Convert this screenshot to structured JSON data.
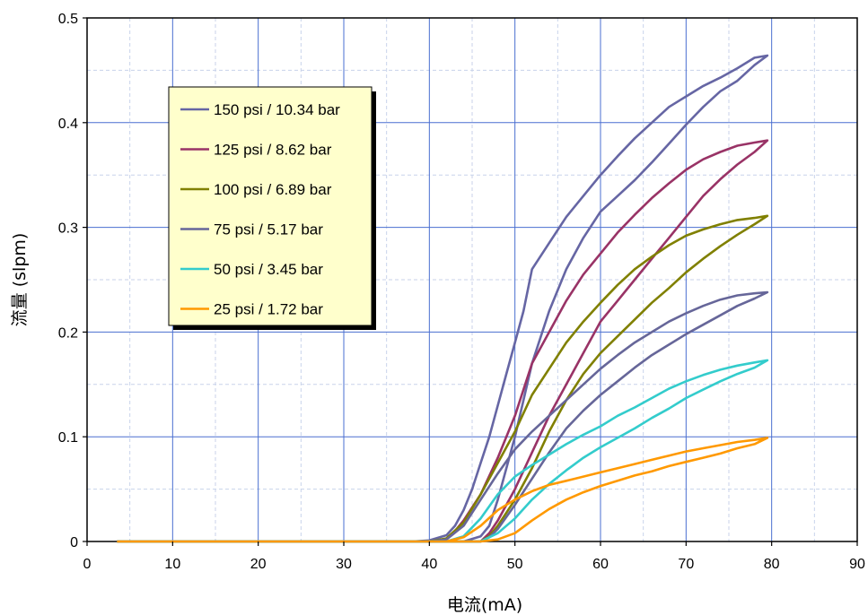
{
  "chart_data": {
    "type": "line",
    "title": "",
    "xlabel": "电流(mA)",
    "ylabel": "流量 (slpm)",
    "xlim": [
      0,
      90
    ],
    "ylim": [
      0,
      0.5
    ],
    "x_ticks": [
      "0",
      "10",
      "20",
      "30",
      "40",
      "50",
      "60",
      "70",
      "80",
      "90"
    ],
    "y_ticks": [
      "0",
      "0.1",
      "0.2",
      "0.3",
      "0.4",
      "0.5"
    ],
    "grid": true,
    "legend_position": "top-left",
    "series": [
      {
        "name": "150 psi / 10.34 bar",
        "color": "#6666a4",
        "up": [
          [
            3.5,
            0
          ],
          [
            10,
            0
          ],
          [
            20,
            0
          ],
          [
            30,
            0
          ],
          [
            38,
            0
          ],
          [
            40,
            0.001
          ],
          [
            42,
            0.006
          ],
          [
            43,
            0.015
          ],
          [
            44,
            0.03
          ],
          [
            45,
            0.05
          ],
          [
            46,
            0.075
          ],
          [
            47,
            0.1
          ],
          [
            48,
            0.13
          ],
          [
            49,
            0.16
          ],
          [
            50,
            0.19
          ],
          [
            51,
            0.22
          ],
          [
            52,
            0.26
          ],
          [
            54,
            0.285
          ],
          [
            56,
            0.31
          ],
          [
            58,
            0.33
          ],
          [
            60,
            0.35
          ],
          [
            62,
            0.368
          ],
          [
            64,
            0.385
          ],
          [
            66,
            0.4
          ],
          [
            68,
            0.415
          ],
          [
            70,
            0.425
          ],
          [
            72,
            0.435
          ],
          [
            74,
            0.443
          ],
          [
            76,
            0.452
          ],
          [
            78,
            0.462
          ],
          [
            79.5,
            0.464
          ]
        ],
        "down": [
          [
            79.5,
            0.464
          ],
          [
            78,
            0.455
          ],
          [
            76,
            0.44
          ],
          [
            74,
            0.43
          ],
          [
            72,
            0.415
          ],
          [
            70,
            0.398
          ],
          [
            68,
            0.38
          ],
          [
            66,
            0.362
          ],
          [
            64,
            0.345
          ],
          [
            62,
            0.33
          ],
          [
            60,
            0.315
          ],
          [
            58,
            0.29
          ],
          [
            56,
            0.26
          ],
          [
            54,
            0.22
          ],
          [
            52,
            0.17
          ],
          [
            50,
            0.1
          ],
          [
            48,
            0.04
          ],
          [
            47,
            0.015
          ],
          [
            46,
            0.005
          ],
          [
            44,
            0
          ],
          [
            40,
            0
          ],
          [
            3.5,
            0
          ]
        ]
      },
      {
        "name": "125 psi / 8.62 bar",
        "color": "#993366",
        "up": [
          [
            3.5,
            0
          ],
          [
            30,
            0
          ],
          [
            40,
            0
          ],
          [
            42,
            0.002
          ],
          [
            43,
            0.01
          ],
          [
            44,
            0.02
          ],
          [
            46,
            0.045
          ],
          [
            48,
            0.08
          ],
          [
            50,
            0.12
          ],
          [
            52,
            0.17
          ],
          [
            54,
            0.2
          ],
          [
            56,
            0.23
          ],
          [
            58,
            0.255
          ],
          [
            60,
            0.275
          ],
          [
            62,
            0.295
          ],
          [
            64,
            0.312
          ],
          [
            66,
            0.328
          ],
          [
            68,
            0.342
          ],
          [
            70,
            0.355
          ],
          [
            72,
            0.365
          ],
          [
            74,
            0.372
          ],
          [
            76,
            0.378
          ],
          [
            78,
            0.381
          ],
          [
            79.5,
            0.383
          ]
        ],
        "down": [
          [
            79.5,
            0.383
          ],
          [
            78,
            0.372
          ],
          [
            76,
            0.36
          ],
          [
            74,
            0.346
          ],
          [
            72,
            0.33
          ],
          [
            70,
            0.31
          ],
          [
            68,
            0.29
          ],
          [
            66,
            0.27
          ],
          [
            64,
            0.25
          ],
          [
            62,
            0.23
          ],
          [
            60,
            0.21
          ],
          [
            58,
            0.18
          ],
          [
            56,
            0.15
          ],
          [
            54,
            0.12
          ],
          [
            52,
            0.085
          ],
          [
            50,
            0.05
          ],
          [
            48,
            0.02
          ],
          [
            47,
            0.008
          ],
          [
            46,
            0
          ],
          [
            40,
            0
          ],
          [
            3.5,
            0
          ]
        ]
      },
      {
        "name": "100 psi / 6.89 bar",
        "color": "#808000",
        "up": [
          [
            3.5,
            0
          ],
          [
            30,
            0
          ],
          [
            40,
            0
          ],
          [
            42,
            0.003
          ],
          [
            44,
            0.018
          ],
          [
            46,
            0.045
          ],
          [
            48,
            0.075
          ],
          [
            50,
            0.105
          ],
          [
            52,
            0.14
          ],
          [
            54,
            0.165
          ],
          [
            56,
            0.19
          ],
          [
            58,
            0.21
          ],
          [
            60,
            0.228
          ],
          [
            62,
            0.245
          ],
          [
            64,
            0.26
          ],
          [
            66,
            0.272
          ],
          [
            68,
            0.283
          ],
          [
            70,
            0.292
          ],
          [
            72,
            0.298
          ],
          [
            74,
            0.303
          ],
          [
            76,
            0.307
          ],
          [
            78,
            0.309
          ],
          [
            79.5,
            0.311
          ]
        ],
        "down": [
          [
            79.5,
            0.311
          ],
          [
            78,
            0.303
          ],
          [
            76,
            0.293
          ],
          [
            74,
            0.282
          ],
          [
            72,
            0.27
          ],
          [
            70,
            0.257
          ],
          [
            68,
            0.242
          ],
          [
            66,
            0.228
          ],
          [
            64,
            0.212
          ],
          [
            62,
            0.196
          ],
          [
            60,
            0.18
          ],
          [
            58,
            0.16
          ],
          [
            56,
            0.135
          ],
          [
            54,
            0.105
          ],
          [
            52,
            0.07
          ],
          [
            50,
            0.04
          ],
          [
            48,
            0.015
          ],
          [
            47,
            0.005
          ],
          [
            46,
            0
          ],
          [
            40,
            0
          ],
          [
            3.5,
            0
          ]
        ]
      },
      {
        "name": "75 psi / 5.17 bar",
        "color": "#666699",
        "up": [
          [
            3.5,
            0
          ],
          [
            30,
            0
          ],
          [
            40,
            0
          ],
          [
            42,
            0.002
          ],
          [
            44,
            0.015
          ],
          [
            46,
            0.04
          ],
          [
            48,
            0.065
          ],
          [
            50,
            0.088
          ],
          [
            52,
            0.105
          ],
          [
            54,
            0.12
          ],
          [
            56,
            0.135
          ],
          [
            58,
            0.15
          ],
          [
            60,
            0.165
          ],
          [
            62,
            0.178
          ],
          [
            64,
            0.19
          ],
          [
            66,
            0.2
          ],
          [
            68,
            0.21
          ],
          [
            70,
            0.218
          ],
          [
            72,
            0.225
          ],
          [
            74,
            0.231
          ],
          [
            76,
            0.235
          ],
          [
            78,
            0.237
          ],
          [
            79.5,
            0.238
          ]
        ],
        "down": [
          [
            79.5,
            0.238
          ],
          [
            78,
            0.232
          ],
          [
            76,
            0.225
          ],
          [
            74,
            0.216
          ],
          [
            72,
            0.207
          ],
          [
            70,
            0.198
          ],
          [
            68,
            0.188
          ],
          [
            66,
            0.178
          ],
          [
            64,
            0.166
          ],
          [
            62,
            0.153
          ],
          [
            60,
            0.14
          ],
          [
            58,
            0.125
          ],
          [
            56,
            0.108
          ],
          [
            54,
            0.085
          ],
          [
            52,
            0.06
          ],
          [
            50,
            0.035
          ],
          [
            48,
            0.012
          ],
          [
            47,
            0.004
          ],
          [
            46,
            0
          ],
          [
            40,
            0
          ],
          [
            3.5,
            0
          ]
        ]
      },
      {
        "name": "50 psi / 3.45 bar",
        "color": "#33cccc",
        "up": [
          [
            3.5,
            0
          ],
          [
            30,
            0
          ],
          [
            42,
            0
          ],
          [
            44,
            0.005
          ],
          [
            46,
            0.022
          ],
          [
            48,
            0.045
          ],
          [
            50,
            0.062
          ],
          [
            52,
            0.073
          ],
          [
            54,
            0.083
          ],
          [
            56,
            0.093
          ],
          [
            58,
            0.102
          ],
          [
            60,
            0.11
          ],
          [
            62,
            0.12
          ],
          [
            64,
            0.128
          ],
          [
            66,
            0.137
          ],
          [
            68,
            0.146
          ],
          [
            70,
            0.153
          ],
          [
            72,
            0.159
          ],
          [
            74,
            0.164
          ],
          [
            76,
            0.168
          ],
          [
            78,
            0.171
          ],
          [
            79.5,
            0.173
          ]
        ],
        "down": [
          [
            79.5,
            0.173
          ],
          [
            78,
            0.166
          ],
          [
            76,
            0.16
          ],
          [
            74,
            0.153
          ],
          [
            72,
            0.145
          ],
          [
            70,
            0.137
          ],
          [
            68,
            0.127
          ],
          [
            66,
            0.118
          ],
          [
            64,
            0.108
          ],
          [
            62,
            0.099
          ],
          [
            60,
            0.09
          ],
          [
            58,
            0.08
          ],
          [
            56,
            0.068
          ],
          [
            54,
            0.055
          ],
          [
            52,
            0.04
          ],
          [
            50,
            0.022
          ],
          [
            48,
            0.008
          ],
          [
            46,
            0
          ],
          [
            40,
            0
          ],
          [
            3.5,
            0
          ]
        ]
      },
      {
        "name": "25 psi / 1.72 bar",
        "color": "#ff9900",
        "up": [
          [
            3.5,
            0
          ],
          [
            30,
            0
          ],
          [
            42,
            0
          ],
          [
            44,
            0.004
          ],
          [
            46,
            0.015
          ],
          [
            48,
            0.03
          ],
          [
            50,
            0.04
          ],
          [
            52,
            0.048
          ],
          [
            54,
            0.054
          ],
          [
            56,
            0.058
          ],
          [
            58,
            0.062
          ],
          [
            60,
            0.066
          ],
          [
            62,
            0.07
          ],
          [
            64,
            0.074
          ],
          [
            66,
            0.078
          ],
          [
            68,
            0.082
          ],
          [
            70,
            0.086
          ],
          [
            72,
            0.089
          ],
          [
            74,
            0.092
          ],
          [
            76,
            0.095
          ],
          [
            78,
            0.097
          ],
          [
            79.5,
            0.099
          ]
        ],
        "down": [
          [
            79.5,
            0.099
          ],
          [
            78,
            0.093
          ],
          [
            76,
            0.089
          ],
          [
            74,
            0.084
          ],
          [
            72,
            0.08
          ],
          [
            70,
            0.076
          ],
          [
            68,
            0.072
          ],
          [
            66,
            0.067
          ],
          [
            64,
            0.063
          ],
          [
            62,
            0.058
          ],
          [
            60,
            0.053
          ],
          [
            58,
            0.047
          ],
          [
            56,
            0.04
          ],
          [
            54,
            0.031
          ],
          [
            52,
            0.02
          ],
          [
            50,
            0.008
          ],
          [
            48,
            0.002
          ],
          [
            46,
            0
          ],
          [
            40,
            0
          ],
          [
            3.5,
            0
          ]
        ]
      }
    ]
  }
}
